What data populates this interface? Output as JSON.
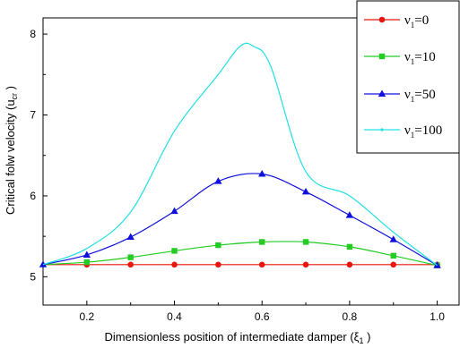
{
  "chart_data": {
    "type": "line",
    "title": "",
    "xlabel": "Dimensionless position of intermediate damper (ξ",
    "xlabel_sub": "1",
    "xlabel_end": " )",
    "ylabel": "Critical folw velocity (u",
    "ylabel_sub": "cr",
    "ylabel_end": " )",
    "xlim": [
      0.1,
      1.05
    ],
    "ylim": [
      4.65,
      8.2
    ],
    "xticks": [
      0.2,
      0.4,
      0.6,
      0.8,
      1.0
    ],
    "xtick_labels": [
      "0.2",
      "0.4",
      "0.6",
      "0.8",
      "1.0"
    ],
    "yticks": [
      5,
      6,
      7,
      8
    ],
    "ytick_labels": [
      "5",
      "6",
      "7",
      "8"
    ],
    "grid": false,
    "legend_position": "top-right",
    "series": [
      {
        "name": "ν",
        "name_sub": "1",
        "name_end": "=0",
        "color": "#e8160c",
        "marker": "circle",
        "x": [
          0.1,
          0.2,
          0.3,
          0.4,
          0.5,
          0.6,
          0.7,
          0.8,
          0.9,
          1.0
        ],
        "y": [
          5.15,
          5.15,
          5.15,
          5.15,
          5.15,
          5.15,
          5.15,
          5.15,
          5.15,
          5.15
        ],
        "marker_x": [
          0.2,
          0.3,
          0.4,
          0.5,
          0.6,
          0.7,
          0.8,
          0.9,
          1.0
        ]
      },
      {
        "name": "ν",
        "name_sub": "1",
        "name_end": "=10",
        "color": "#22cc22",
        "marker": "square",
        "x": [
          0.1,
          0.2,
          0.3,
          0.4,
          0.5,
          0.6,
          0.7,
          0.8,
          0.9,
          1.0
        ],
        "y": [
          5.15,
          5.18,
          5.24,
          5.32,
          5.39,
          5.43,
          5.43,
          5.37,
          5.26,
          5.14
        ],
        "marker_x": [
          0.2,
          0.3,
          0.4,
          0.5,
          0.6,
          0.7,
          0.8,
          0.9,
          1.0
        ]
      },
      {
        "name": "ν",
        "name_sub": "1",
        "name_end": "=50",
        "color": "#1010dd",
        "marker": "triangle",
        "x": [
          0.1,
          0.2,
          0.3,
          0.4,
          0.5,
          0.6,
          0.7,
          0.8,
          0.9,
          1.0
        ],
        "y": [
          5.15,
          5.27,
          5.49,
          5.81,
          6.18,
          6.27,
          6.05,
          5.76,
          5.46,
          5.14
        ],
        "marker_x": [
          0.1,
          0.2,
          0.3,
          0.4,
          0.5,
          0.6,
          0.7,
          0.8,
          0.9,
          1.0
        ]
      },
      {
        "name": "ν",
        "name_sub": "1",
        "name_end": "=100",
        "color": "#22e0e6",
        "marker": "dot",
        "x": [
          0.1,
          0.2,
          0.3,
          0.4,
          0.5,
          0.55,
          0.58,
          0.62,
          0.7,
          0.8,
          0.9,
          1.0
        ],
        "y": [
          5.15,
          5.35,
          5.8,
          6.8,
          7.5,
          7.85,
          7.85,
          7.6,
          6.3,
          6.0,
          5.55,
          5.14
        ],
        "marker_x": []
      }
    ]
  }
}
